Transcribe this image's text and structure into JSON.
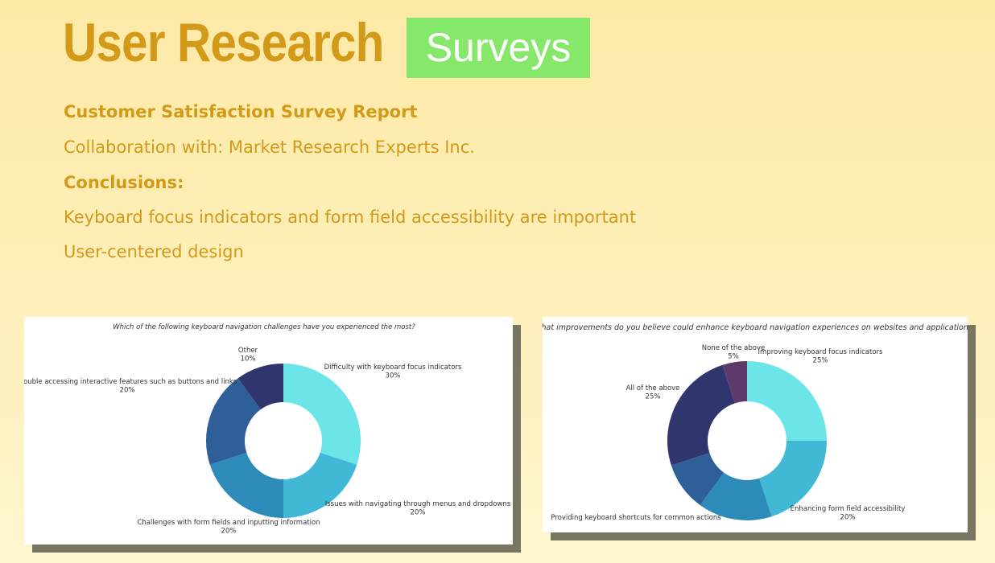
{
  "header": {
    "title": "User Research",
    "badge": "Surveys"
  },
  "report": {
    "heading": "Customer Satisfaction Survey Report",
    "collaboration": "Collaboration with: Market Research Experts Inc.",
    "conclusions_heading": "Conclusions:",
    "conclusion_1": "Keyboard focus indicators and form field accessibility are important",
    "conclusion_2": "User-centered design"
  },
  "colors": {
    "title": "#d39a1a",
    "badge": "#86e86a",
    "cyan": "#6ce5e8",
    "sky": "#41b8d5",
    "blue": "#2d8bba",
    "steel": "#2f5f98",
    "navy": "#31356e",
    "plum": "#5e3a6b"
  },
  "chart_data": [
    {
      "type": "pie",
      "donut": true,
      "title": "Which of the following keyboard navigation challenges have you experienced the most?",
      "slices": [
        {
          "label": "Difficulty with keyboard focus indicators",
          "value": 30,
          "value_label": "30%",
          "color": "#6ce5e8"
        },
        {
          "label": "Issues with navigating through menus and dropdowns",
          "value": 20,
          "value_label": "20%",
          "color": "#41b8d5"
        },
        {
          "label": "Challenges with form fields and inputting information",
          "value": 20,
          "value_label": "20%",
          "color": "#2d8bba"
        },
        {
          "label": "Trouble accessing interactive features such as buttons and links",
          "value": 20,
          "value_label": "20%",
          "color": "#2f5f98"
        },
        {
          "label": "Other",
          "value": 10,
          "value_label": "10%",
          "color": "#31356e"
        }
      ]
    },
    {
      "type": "pie",
      "donut": true,
      "title": "What improvements do you believe could enhance keyboard navigation experiences on websites and applications?",
      "slices": [
        {
          "label": "Improving keyboard focus indicators",
          "value": 25,
          "value_label": "25%",
          "color": "#6ce5e8"
        },
        {
          "label": "Enhancing form field accessibility",
          "value": 20,
          "value_label": "20%",
          "color": "#41b8d5"
        },
        {
          "label": "Providing keyboard shortcuts for common actions",
          "value": 15,
          "value_label": "",
          "color": "#2d8bba"
        },
        {
          "label": "",
          "value": 10,
          "value_label": "10%",
          "color": "#2f5f98"
        },
        {
          "label": "All of the above",
          "value": 25,
          "value_label": "25%",
          "color": "#31356e"
        },
        {
          "label": "None of the above",
          "value": 5,
          "value_label": "5%",
          "color": "#5e3a6b"
        }
      ]
    }
  ]
}
